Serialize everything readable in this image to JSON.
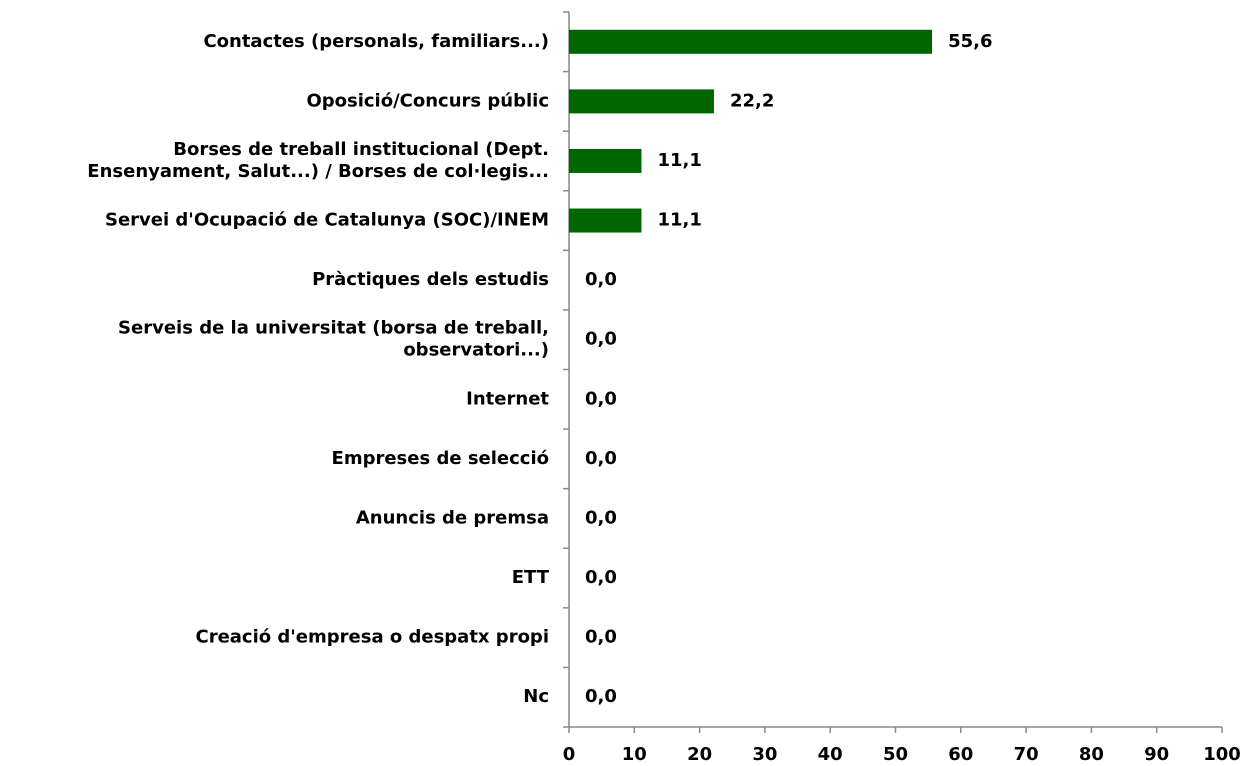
{
  "chart_data": {
    "type": "barh",
    "categories": [
      "Contactes (personals, familiars...)",
      "Oposició/Concurs públic",
      "Borses de treball institucional (Dept.\nEnsenyament, Salut...) / Borses de col·legis...",
      "Servei d'Ocupació de Catalunya (SOC)/INEM",
      "Pràctiques dels estudis",
      "Serveis de la universitat (borsa de treball,\nobservatori...)",
      "Internet",
      "Empreses de selecció",
      "Anuncis de premsa",
      "ETT",
      "Creació d'empresa o despatx propi",
      "Nc"
    ],
    "values": [
      55.6,
      22.2,
      11.1,
      11.1,
      0,
      0,
      0,
      0,
      0,
      0,
      0,
      0
    ],
    "value_labels": [
      "55,6",
      "22,2",
      "11,1",
      "11,1",
      "0,0",
      "0,0",
      "0,0",
      "0,0",
      "0,0",
      "0,0",
      "0,0",
      "0,0"
    ],
    "color": "#006600",
    "xlim": [
      0,
      100
    ],
    "xticks": [
      0,
      10,
      20,
      30,
      40,
      50,
      60,
      70,
      80,
      90,
      100
    ]
  }
}
